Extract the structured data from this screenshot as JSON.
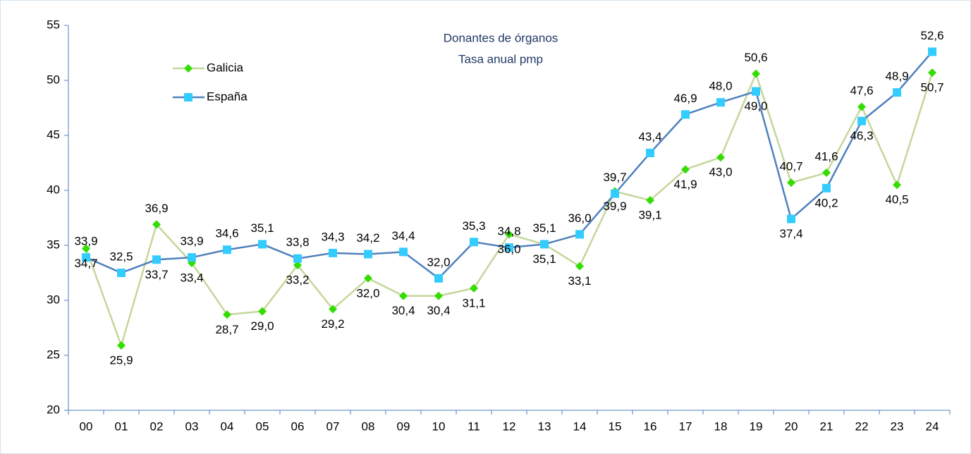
{
  "chart_data": {
    "type": "line",
    "title": "Donantes de órganos",
    "subtitle": "Tasa anual pmp",
    "categories": [
      "00",
      "01",
      "02",
      "03",
      "04",
      "05",
      "06",
      "07",
      "08",
      "09",
      "10",
      "11",
      "12",
      "13",
      "14",
      "15",
      "16",
      "17",
      "18",
      "19",
      "20",
      "21",
      "22",
      "23",
      "24"
    ],
    "series": [
      {
        "name": "Galicia",
        "color": "#c4d79b",
        "marker_color": "#33dd00",
        "marker": "diamond",
        "values": [
          34.7,
          25.9,
          36.9,
          33.4,
          28.7,
          29.0,
          33.2,
          29.2,
          32.0,
          30.4,
          30.4,
          31.1,
          36.0,
          35.1,
          33.1,
          39.9,
          39.1,
          41.9,
          43.0,
          50.6,
          40.7,
          41.6,
          47.6,
          40.5,
          50.7
        ],
        "value_labels": [
          "34,7",
          "25,9",
          "36,9",
          "33,4",
          "28,7",
          "29,0",
          "33,2",
          "29,2",
          "32,0",
          "30,4",
          "30,4",
          "31,1",
          "36,0",
          "35,1",
          "33,1",
          "39,9",
          "39,1",
          "41,9",
          "43,0",
          "50,6",
          "40,7",
          "41,6",
          "47,6",
          "40,5",
          "50,7"
        ]
      },
      {
        "name": "España",
        "color": "#4f81bd",
        "marker_color": "#33ccff",
        "marker": "square",
        "values": [
          33.9,
          32.5,
          33.7,
          33.9,
          34.6,
          35.1,
          33.8,
          34.3,
          34.2,
          34.4,
          32.0,
          35.3,
          34.8,
          35.1,
          36.0,
          39.7,
          43.4,
          46.9,
          48.0,
          49.0,
          37.4,
          40.2,
          46.3,
          48.9,
          52.6
        ],
        "value_labels": [
          "33,9",
          "32,5",
          "33,7",
          "33,9",
          "34,6",
          "35,1",
          "33,8",
          "34,3",
          "34,2",
          "34,4",
          "32,0",
          "35,3",
          "34,8",
          "35,1",
          "36,0",
          "39,7",
          "43,4",
          "46,9",
          "48,0",
          "49,0",
          "37,4",
          "40,2",
          "46,3",
          "48,9",
          "52,6"
        ]
      }
    ],
    "ylim": [
      20,
      55
    ],
    "yticks": [
      20,
      25,
      30,
      35,
      40,
      45,
      50,
      55
    ],
    "grid": false
  }
}
